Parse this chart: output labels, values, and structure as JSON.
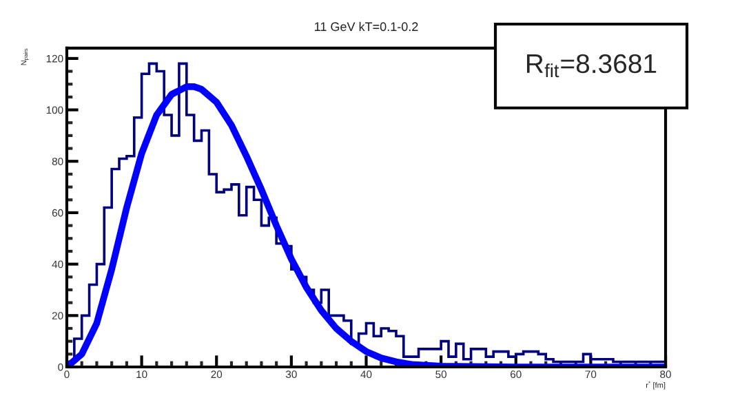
{
  "chart_data": {
    "type": "histogram",
    "title": "11 GeV kT=0.1-0.2",
    "xlabel": "r$^{*}$ [fm]",
    "ylabel": "N$_{pairs}$",
    "xlim": [
      0,
      80
    ],
    "xticks": [
      0,
      10,
      20,
      30,
      40,
      50,
      60,
      70,
      80
    ],
    "ylim": [
      0,
      124
    ],
    "yticks": [
      0,
      20,
      40,
      60,
      80,
      100,
      120
    ],
    "grid": false,
    "legend": false,
    "series": [
      {
        "color": "#00007f",
        "bins": [
          0,
          1,
          2,
          3,
          4,
          5,
          6,
          7,
          8,
          9,
          10,
          11,
          12,
          13,
          14,
          15,
          16,
          17,
          18,
          19,
          20,
          21,
          22,
          23,
          24,
          25,
          26,
          27,
          28,
          29,
          30,
          31,
          32,
          33,
          34,
          35,
          36,
          37,
          38,
          39,
          40,
          41,
          42,
          43,
          44,
          45,
          46,
          47,
          48,
          49,
          50,
          51,
          52,
          53,
          54,
          55,
          56,
          57,
          58,
          59,
          60,
          61,
          62,
          63,
          64,
          65,
          66,
          67,
          68,
          69,
          70,
          71,
          72,
          73,
          74,
          75,
          76,
          77,
          78,
          79,
          80
        ],
        "values": [
          2,
          11,
          20,
          32,
          40,
          62,
          77,
          81,
          82,
          97,
          114,
          118,
          115,
          98,
          90,
          118,
          98,
          88,
          92,
          75,
          68,
          69,
          71,
          59,
          70,
          65,
          55,
          58,
          48,
          47,
          38,
          35,
          30,
          25,
          30,
          20,
          20,
          18,
          9,
          13,
          17,
          12,
          15,
          14,
          12,
          4,
          4,
          7,
          7,
          7,
          10,
          4,
          9,
          3,
          7,
          7,
          4,
          6,
          6,
          4,
          5,
          6,
          6,
          5,
          3,
          2,
          2,
          2,
          2,
          5,
          3,
          3,
          3,
          2,
          2,
          2,
          2,
          2,
          2,
          2
        ]
      },
      {
        "type": "line",
        "color": "#0000ff",
        "x": [
          0,
          2,
          4,
          6,
          8,
          10,
          12,
          14,
          16,
          17,
          18,
          20,
          22,
          24,
          26,
          28,
          30,
          32,
          34,
          36,
          38,
          40,
          42,
          44,
          46,
          50,
          60,
          80
        ],
        "values": [
          0,
          5,
          17,
          38,
          62,
          83,
          98,
          106,
          109,
          109,
          108,
          103,
          94,
          82,
          69,
          55,
          42,
          31,
          22,
          15,
          10,
          6,
          3.5,
          2,
          1,
          0.3,
          0,
          0
        ]
      }
    ],
    "annotations": [
      "R$_{fit}$=8.3681"
    ]
  }
}
